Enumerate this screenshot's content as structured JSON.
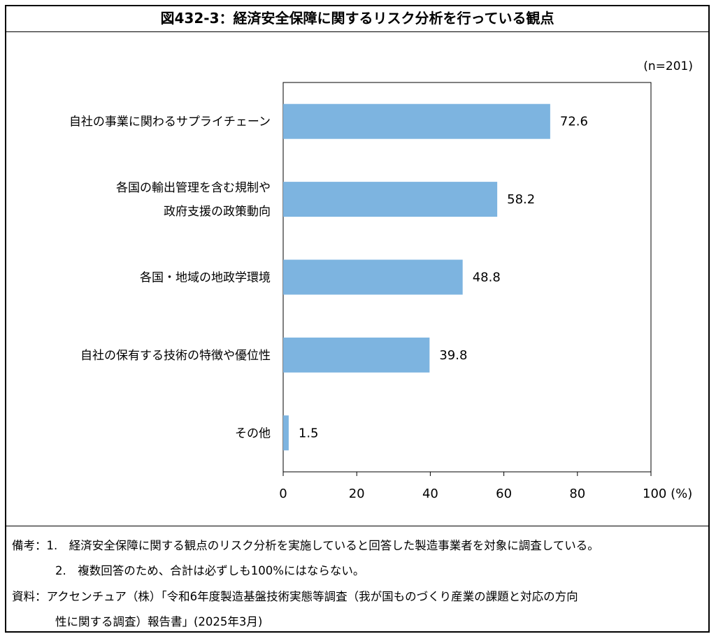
{
  "title": "図432-3：経済安全保障に関するリスク分析を行っている観点",
  "chart_data": {
    "type": "bar",
    "orientation": "horizontal",
    "sample_note": "(n=201)",
    "categories": [
      [
        "自社の事業に関わるサプライチェーン"
      ],
      [
        "各国の輸出管理を含む規制や",
        "政府支援の政策動向"
      ],
      [
        "各国・地域の地政学環境"
      ],
      [
        "自社の保有する技術の特徴や優位性"
      ],
      [
        "その他"
      ]
    ],
    "values": [
      72.6,
      58.2,
      48.8,
      39.8,
      1.5
    ],
    "value_labels": [
      "72.6",
      "58.2",
      "48.8",
      "39.8",
      "1.5"
    ],
    "xlim": [
      0,
      100
    ],
    "x_ticks": [
      "0",
      "20",
      "40",
      "60",
      "80",
      "100 (%)"
    ],
    "x_tick_values": [
      0,
      20,
      40,
      60,
      80,
      100
    ],
    "bar_color": "#7db4e0",
    "grid": false
  },
  "notes": {
    "line1": "備考：1.　経済安全保障に関する観点のリスク分析を実施していると回答した製造事業者を対象に調査している。",
    "line2": "2.　複数回答のため、合計は必ずしも100%にはならない。",
    "line3": "資料：アクセンチュア（株）「令和6年度製造基盤技術実態等調査（我が国ものづくり産業の課題と対応の方向",
    "line4": "性に関する調査）報告書」(2025年3月)"
  }
}
